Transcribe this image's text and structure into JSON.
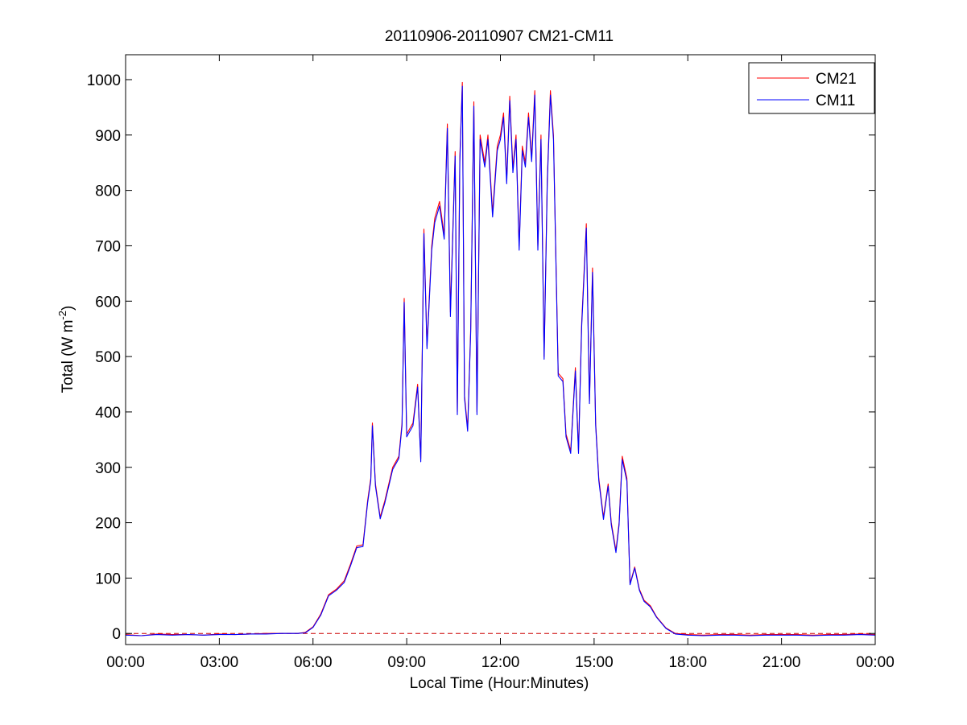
{
  "chart_data": {
    "type": "line",
    "title": "20110906-20110907 CM21-CM11",
    "xlabel": "Local Time (Hour:Minutes)",
    "ylabel_main": "Total (W m",
    "ylabel_sup": "-2",
    "ylabel_close": ")",
    "x_ticks": [
      "00:00",
      "03:00",
      "06:00",
      "09:00",
      "12:00",
      "15:00",
      "18:00",
      "21:00",
      "00:00"
    ],
    "x_range_hours": [
      0,
      24
    ],
    "y_ticks": [
      0,
      100,
      200,
      300,
      400,
      500,
      600,
      700,
      800,
      900,
      1000
    ],
    "ylim": [
      -20,
      1045
    ],
    "grid": false,
    "legend_position": "top-right",
    "zero_line": {
      "y": 0,
      "style": "dashed",
      "color": "#cc0000"
    },
    "series": [
      {
        "name": "CM21",
        "color": "#ff0000",
        "points": [
          [
            0.0,
            -2
          ],
          [
            0.5,
            -4
          ],
          [
            1.0,
            -1
          ],
          [
            1.5,
            -2
          ],
          [
            2.0,
            -2
          ],
          [
            2.5,
            -3
          ],
          [
            3.0,
            -1
          ],
          [
            3.5,
            -2
          ],
          [
            4.0,
            -1
          ],
          [
            4.5,
            0
          ],
          [
            5.0,
            0
          ],
          [
            5.5,
            0
          ],
          [
            5.75,
            2
          ],
          [
            6.0,
            12
          ],
          [
            6.25,
            35
          ],
          [
            6.5,
            70
          ],
          [
            6.75,
            80
          ],
          [
            7.0,
            95
          ],
          [
            7.2,
            125
          ],
          [
            7.4,
            158
          ],
          [
            7.6,
            160
          ],
          [
            7.75,
            240
          ],
          [
            7.85,
            280
          ],
          [
            7.9,
            380
          ],
          [
            8.0,
            270
          ],
          [
            8.15,
            210
          ],
          [
            8.3,
            240
          ],
          [
            8.55,
            300
          ],
          [
            8.75,
            320
          ],
          [
            8.85,
            380
          ],
          [
            8.92,
            605
          ],
          [
            9.0,
            360
          ],
          [
            9.2,
            380
          ],
          [
            9.35,
            450
          ],
          [
            9.45,
            315
          ],
          [
            9.55,
            730
          ],
          [
            9.65,
            520
          ],
          [
            9.8,
            700
          ],
          [
            9.9,
            750
          ],
          [
            10.05,
            780
          ],
          [
            10.2,
            720
          ],
          [
            10.3,
            920
          ],
          [
            10.4,
            580
          ],
          [
            10.55,
            870
          ],
          [
            10.62,
            400
          ],
          [
            10.7,
            860
          ],
          [
            10.78,
            995
          ],
          [
            10.85,
            430
          ],
          [
            10.95,
            370
          ],
          [
            11.05,
            550
          ],
          [
            11.15,
            960
          ],
          [
            11.25,
            400
          ],
          [
            11.35,
            900
          ],
          [
            11.5,
            850
          ],
          [
            11.6,
            900
          ],
          [
            11.75,
            760
          ],
          [
            11.9,
            880
          ],
          [
            12.0,
            900
          ],
          [
            12.1,
            940
          ],
          [
            12.2,
            820
          ],
          [
            12.3,
            970
          ],
          [
            12.4,
            840
          ],
          [
            12.5,
            900
          ],
          [
            12.6,
            700
          ],
          [
            12.7,
            880
          ],
          [
            12.8,
            850
          ],
          [
            12.9,
            940
          ],
          [
            13.0,
            860
          ],
          [
            13.1,
            980
          ],
          [
            13.2,
            700
          ],
          [
            13.3,
            900
          ],
          [
            13.4,
            500
          ],
          [
            13.5,
            820
          ],
          [
            13.6,
            980
          ],
          [
            13.7,
            900
          ],
          [
            13.85,
            470
          ],
          [
            14.0,
            460
          ],
          [
            14.1,
            360
          ],
          [
            14.25,
            330
          ],
          [
            14.4,
            480
          ],
          [
            14.5,
            330
          ],
          [
            14.6,
            560
          ],
          [
            14.75,
            740
          ],
          [
            14.85,
            420
          ],
          [
            14.95,
            660
          ],
          [
            15.05,
            380
          ],
          [
            15.15,
            280
          ],
          [
            15.3,
            210
          ],
          [
            15.45,
            270
          ],
          [
            15.55,
            200
          ],
          [
            15.7,
            150
          ],
          [
            15.8,
            200
          ],
          [
            15.9,
            320
          ],
          [
            16.05,
            280
          ],
          [
            16.15,
            90
          ],
          [
            16.3,
            120
          ],
          [
            16.45,
            80
          ],
          [
            16.6,
            60
          ],
          [
            16.8,
            50
          ],
          [
            17.0,
            30
          ],
          [
            17.3,
            10
          ],
          [
            17.6,
            0
          ],
          [
            18.0,
            -2
          ],
          [
            18.5,
            -3
          ],
          [
            19.0,
            -2
          ],
          [
            19.5,
            -2
          ],
          [
            20.0,
            -3
          ],
          [
            20.5,
            -2
          ],
          [
            21.0,
            -2
          ],
          [
            21.5,
            -2
          ],
          [
            22.0,
            -3
          ],
          [
            22.5,
            -2
          ],
          [
            23.0,
            -2
          ],
          [
            23.5,
            -1
          ],
          [
            24.0,
            -2
          ]
        ]
      },
      {
        "name": "CM11",
        "color": "#0000ff",
        "points": [
          [
            0.0,
            -3
          ],
          [
            0.5,
            -4
          ],
          [
            1.0,
            -2
          ],
          [
            1.5,
            -3
          ],
          [
            2.0,
            -2
          ],
          [
            2.5,
            -3
          ],
          [
            3.0,
            -2
          ],
          [
            3.5,
            -2
          ],
          [
            4.0,
            -1
          ],
          [
            4.5,
            -1
          ],
          [
            5.0,
            0
          ],
          [
            5.5,
            0
          ],
          [
            5.75,
            1
          ],
          [
            6.0,
            11
          ],
          [
            6.25,
            33
          ],
          [
            6.5,
            68
          ],
          [
            6.75,
            78
          ],
          [
            7.0,
            92
          ],
          [
            7.2,
            122
          ],
          [
            7.4,
            155
          ],
          [
            7.6,
            157
          ],
          [
            7.75,
            236
          ],
          [
            7.85,
            276
          ],
          [
            7.9,
            375
          ],
          [
            8.0,
            266
          ],
          [
            8.15,
            207
          ],
          [
            8.3,
            236
          ],
          [
            8.55,
            296
          ],
          [
            8.75,
            316
          ],
          [
            8.85,
            375
          ],
          [
            8.92,
            598
          ],
          [
            9.0,
            355
          ],
          [
            9.2,
            375
          ],
          [
            9.35,
            445
          ],
          [
            9.45,
            310
          ],
          [
            9.55,
            722
          ],
          [
            9.65,
            514
          ],
          [
            9.8,
            692
          ],
          [
            9.9,
            742
          ],
          [
            10.05,
            772
          ],
          [
            10.2,
            712
          ],
          [
            10.3,
            912
          ],
          [
            10.4,
            572
          ],
          [
            10.55,
            862
          ],
          [
            10.62,
            395
          ],
          [
            10.7,
            852
          ],
          [
            10.78,
            988
          ],
          [
            10.85,
            425
          ],
          [
            10.95,
            365
          ],
          [
            11.05,
            544
          ],
          [
            11.15,
            952
          ],
          [
            11.25,
            395
          ],
          [
            11.35,
            892
          ],
          [
            11.5,
            842
          ],
          [
            11.6,
            892
          ],
          [
            11.75,
            752
          ],
          [
            11.9,
            872
          ],
          [
            12.0,
            892
          ],
          [
            12.1,
            932
          ],
          [
            12.2,
            812
          ],
          [
            12.3,
            962
          ],
          [
            12.4,
            832
          ],
          [
            12.5,
            892
          ],
          [
            12.6,
            692
          ],
          [
            12.7,
            872
          ],
          [
            12.8,
            842
          ],
          [
            12.9,
            932
          ],
          [
            13.0,
            852
          ],
          [
            13.1,
            972
          ],
          [
            13.2,
            692
          ],
          [
            13.3,
            892
          ],
          [
            13.4,
            495
          ],
          [
            13.5,
            812
          ],
          [
            13.6,
            972
          ],
          [
            13.7,
            892
          ],
          [
            13.85,
            465
          ],
          [
            14.0,
            455
          ],
          [
            14.1,
            355
          ],
          [
            14.25,
            325
          ],
          [
            14.4,
            474
          ],
          [
            14.5,
            325
          ],
          [
            14.6,
            553
          ],
          [
            14.75,
            732
          ],
          [
            14.85,
            415
          ],
          [
            14.95,
            652
          ],
          [
            15.05,
            375
          ],
          [
            15.15,
            276
          ],
          [
            15.3,
            206
          ],
          [
            15.45,
            266
          ],
          [
            15.55,
            196
          ],
          [
            15.7,
            146
          ],
          [
            15.8,
            196
          ],
          [
            15.9,
            314
          ],
          [
            16.05,
            275
          ],
          [
            16.15,
            88
          ],
          [
            16.3,
            118
          ],
          [
            16.45,
            78
          ],
          [
            16.6,
            58
          ],
          [
            16.8,
            48
          ],
          [
            17.0,
            29
          ],
          [
            17.3,
            9
          ],
          [
            17.6,
            -1
          ],
          [
            18.0,
            -3
          ],
          [
            18.5,
            -4
          ],
          [
            19.0,
            -3
          ],
          [
            19.5,
            -3
          ],
          [
            20.0,
            -4
          ],
          [
            20.5,
            -3
          ],
          [
            21.0,
            -3
          ],
          [
            21.5,
            -3
          ],
          [
            22.0,
            -4
          ],
          [
            22.5,
            -3
          ],
          [
            23.0,
            -3
          ],
          [
            23.5,
            -2
          ],
          [
            24.0,
            -3
          ]
        ]
      }
    ]
  }
}
